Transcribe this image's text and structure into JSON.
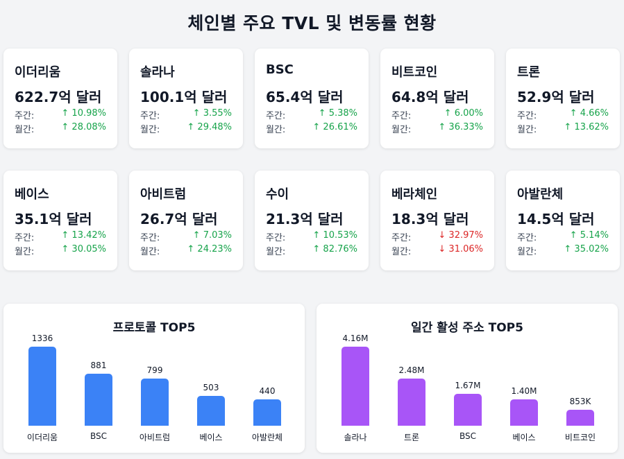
{
  "title": "체인별 주요 TVL 및 변동률 현황",
  "labels": {
    "weekly": "주간:",
    "monthly": "월간:"
  },
  "cards": [
    {
      "name": "이더리움",
      "tvl": "622.7억 달러",
      "weekly": "↑ 10.98%",
      "monthly": "↑ 28.08%",
      "weekly_dir": "up",
      "monthly_dir": "up"
    },
    {
      "name": "솔라나",
      "tvl": "100.1억 달러",
      "weekly": "↑ 3.55%",
      "monthly": "↑ 29.48%",
      "weekly_dir": "up",
      "monthly_dir": "up"
    },
    {
      "name": "BSC",
      "tvl": "65.4억 달러",
      "weekly": "↑ 5.38%",
      "monthly": "↑ 26.61%",
      "weekly_dir": "up",
      "monthly_dir": "up"
    },
    {
      "name": "비트코인",
      "tvl": "64.8억 달러",
      "weekly": "↑ 6.00%",
      "monthly": "↑ 36.33%",
      "weekly_dir": "up",
      "monthly_dir": "up"
    },
    {
      "name": "트론",
      "tvl": "52.9억 달러",
      "weekly": "↑ 4.66%",
      "monthly": "↑ 13.62%",
      "weekly_dir": "up",
      "monthly_dir": "up"
    },
    {
      "name": "베이스",
      "tvl": "35.1억 달러",
      "weekly": "↑ 13.42%",
      "monthly": "↑ 30.05%",
      "weekly_dir": "up",
      "monthly_dir": "up"
    },
    {
      "name": "아비트럼",
      "tvl": "26.7억 달러",
      "weekly": "↑ 7.03%",
      "monthly": "↑ 24.23%",
      "weekly_dir": "up",
      "monthly_dir": "up"
    },
    {
      "name": "수이",
      "tvl": "21.3억 달러",
      "weekly": "↑ 10.53%",
      "monthly": "↑ 82.76%",
      "weekly_dir": "up",
      "monthly_dir": "up"
    },
    {
      "name": "베라체인",
      "tvl": "18.3억 달러",
      "weekly": "↓ 32.97%",
      "monthly": "↓ 31.06%",
      "weekly_dir": "down",
      "monthly_dir": "down"
    },
    {
      "name": "아발란체",
      "tvl": "14.5억 달러",
      "weekly": "↑ 5.14%",
      "monthly": "↑ 35.02%",
      "weekly_dir": "up",
      "monthly_dir": "up"
    }
  ],
  "chart_data": [
    {
      "type": "bar",
      "title": "프로토콜 TOP5",
      "categories": [
        "이더리움",
        "BSC",
        "아비트럼",
        "베이스",
        "아발란체"
      ],
      "values": [
        1336,
        881,
        799,
        503,
        440
      ],
      "value_labels": [
        "1336",
        "881",
        "799",
        "503",
        "440"
      ],
      "ylim": [
        0,
        1336
      ],
      "color": "#3b82f6",
      "grid": false
    },
    {
      "type": "bar",
      "title": "일간 활성 주소 TOP5",
      "categories": [
        "솔라나",
        "트론",
        "BSC",
        "베이스",
        "비트코인"
      ],
      "values": [
        4160000,
        2480000,
        1670000,
        1400000,
        853000
      ],
      "value_labels": [
        "4.16M",
        "2.48M",
        "1.67M",
        "1.40M",
        "853K"
      ],
      "ylim": [
        0,
        4160000
      ],
      "color": "#a855f7",
      "grid": false
    }
  ]
}
